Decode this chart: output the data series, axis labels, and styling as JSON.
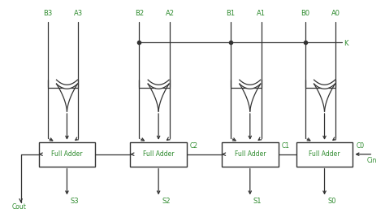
{
  "background": "#ffffff",
  "line_color": "#333333",
  "green_color": "#2e8b2e",
  "box_edge": "#222222",
  "figsize": [
    4.74,
    2.62
  ],
  "dpi": 100,
  "fa_labels": [
    "Full Adder",
    "Full Adder",
    "Full Adder",
    "Full Adder"
  ],
  "b_labels": [
    "B3",
    "B2",
    "B1",
    "B0"
  ],
  "a_labels": [
    "A3",
    "A2",
    "A1",
    "A0"
  ],
  "carry_labels": [
    "C2",
    "C1",
    "C0"
  ],
  "s_labels": [
    "S3",
    "S2",
    "S1",
    "S0"
  ],
  "k_label": "K",
  "cin_label": "Cin",
  "cout_label": "Cout"
}
